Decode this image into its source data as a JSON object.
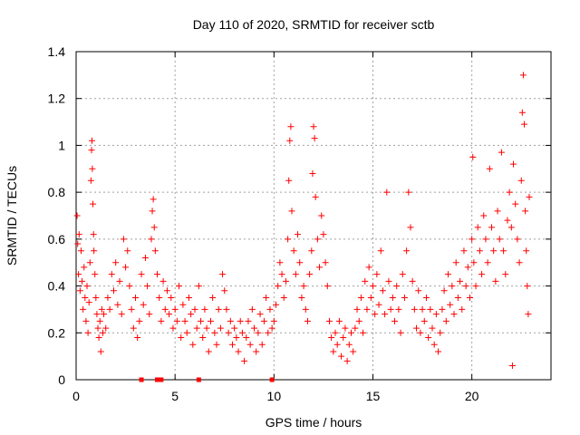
{
  "chart_data": {
    "type": "scatter",
    "title": "Day 110 of 2020, SRMTID for receiver sctb",
    "xlabel": "GPS time / hours",
    "ylabel": "SRMTID / TECUs",
    "xlim": [
      0,
      24
    ],
    "ylim": [
      0,
      1.4
    ],
    "xticks": [
      0,
      5,
      10,
      15,
      20
    ],
    "xtick_labels": [
      "0",
      "5",
      "10",
      "15",
      "20"
    ],
    "yticks": [
      0,
      0.2,
      0.4,
      0.6,
      0.8,
      1.0,
      1.2,
      1.4
    ],
    "ytick_labels": [
      "0",
      "0.2",
      "0.4",
      "0.6",
      "0.8",
      "1",
      "1.2",
      "1.4"
    ],
    "grid": true,
    "marker": "+",
    "color": "#ff0000",
    "series": [
      {
        "name": "sctb",
        "points": [
          [
            0.05,
            0.7
          ],
          [
            0.08,
            0.58
          ],
          [
            0.12,
            0.45
          ],
          [
            0.15,
            0.62
          ],
          [
            0.2,
            0.38
          ],
          [
            0.25,
            0.55
          ],
          [
            0.3,
            0.42
          ],
          [
            0.35,
            0.3
          ],
          [
            0.4,
            0.48
          ],
          [
            0.45,
            0.35
          ],
          [
            0.5,
            0.25
          ],
          [
            0.55,
            0.4
          ],
          [
            0.6,
            0.2
          ],
          [
            0.65,
            0.33
          ],
          [
            0.7,
            0.5
          ],
          [
            0.75,
            0.85
          ],
          [
            0.78,
            0.98
          ],
          [
            0.8,
            1.02
          ],
          [
            0.82,
            0.9
          ],
          [
            0.85,
            0.75
          ],
          [
            0.88,
            0.62
          ],
          [
            0.9,
            0.55
          ],
          [
            0.95,
            0.45
          ],
          [
            1.0,
            0.35
          ],
          [
            1.05,
            0.28
          ],
          [
            1.1,
            0.22
          ],
          [
            1.15,
            0.18
          ],
          [
            1.2,
            0.25
          ],
          [
            1.25,
            0.12
          ],
          [
            1.3,
            0.3
          ],
          [
            1.35,
            0.2
          ],
          [
            1.4,
            0.28
          ],
          [
            1.5,
            0.22
          ],
          [
            1.6,
            0.35
          ],
          [
            1.7,
            0.3
          ],
          [
            1.8,
            0.45
          ],
          [
            1.9,
            0.38
          ],
          [
            2.0,
            0.5
          ],
          [
            2.1,
            0.32
          ],
          [
            2.2,
            0.42
          ],
          [
            2.3,
            0.28
          ],
          [
            2.4,
            0.6
          ],
          [
            2.5,
            0.48
          ],
          [
            2.6,
            0.55
          ],
          [
            2.7,
            0.4
          ],
          [
            2.8,
            0.3
          ],
          [
            2.9,
            0.22
          ],
          [
            3.0,
            0.35
          ],
          [
            3.1,
            0.18
          ],
          [
            3.2,
            0.25
          ],
          [
            3.3,
            0.45
          ],
          [
            3.4,
            0.32
          ],
          [
            3.5,
            0.52
          ],
          [
            3.6,
            0.4
          ],
          [
            3.7,
            0.28
          ],
          [
            3.8,
            0.6
          ],
          [
            3.85,
            0.72
          ],
          [
            3.9,
            0.77
          ],
          [
            3.95,
            0.65
          ],
          [
            4.0,
            0.55
          ],
          [
            4.1,
            0.45
          ],
          [
            4.2,
            0.35
          ],
          [
            4.3,
            0.25
          ],
          [
            4.4,
            0.42
          ],
          [
            4.5,
            0.3
          ],
          [
            4.6,
            0.38
          ],
          [
            4.7,
            0.28
          ],
          [
            4.8,
            0.35
          ],
          [
            4.9,
            0.22
          ],
          [
            5.0,
            0.3
          ],
          [
            5.1,
            0.25
          ],
          [
            5.2,
            0.4
          ],
          [
            5.3,
            0.18
          ],
          [
            5.4,
            0.32
          ],
          [
            5.5,
            0.25
          ],
          [
            5.6,
            0.2
          ],
          [
            5.7,
            0.35
          ],
          [
            5.8,
            0.28
          ],
          [
            5.9,
            0.15
          ],
          [
            6.0,
            0.3
          ],
          [
            6.1,
            0.22
          ],
          [
            6.2,
            0.4
          ],
          [
            6.3,
            0.25
          ],
          [
            6.4,
            0.18
          ],
          [
            6.5,
            0.3
          ],
          [
            6.6,
            0.22
          ],
          [
            6.7,
            0.12
          ],
          [
            6.8,
            0.25
          ],
          [
            6.9,
            0.35
          ],
          [
            7.0,
            0.2
          ],
          [
            7.1,
            0.15
          ],
          [
            7.2,
            0.3
          ],
          [
            7.3,
            0.22
          ],
          [
            7.4,
            0.45
          ],
          [
            7.5,
            0.38
          ],
          [
            7.6,
            0.3
          ],
          [
            7.7,
            0.2
          ],
          [
            7.8,
            0.25
          ],
          [
            7.9,
            0.15
          ],
          [
            8.0,
            0.22
          ],
          [
            8.1,
            0.18
          ],
          [
            8.2,
            0.12
          ],
          [
            8.3,
            0.25
          ],
          [
            8.4,
            0.2
          ],
          [
            8.5,
            0.08
          ],
          [
            8.6,
            0.18
          ],
          [
            8.7,
            0.25
          ],
          [
            8.8,
            0.15
          ],
          [
            8.9,
            0.3
          ],
          [
            9.0,
            0.22
          ],
          [
            9.1,
            0.12
          ],
          [
            9.2,
            0.2
          ],
          [
            9.3,
            0.28
          ],
          [
            9.4,
            0.15
          ],
          [
            9.5,
            0.25
          ],
          [
            9.6,
            0.35
          ],
          [
            9.7,
            0.2
          ],
          [
            9.8,
            0.3
          ],
          [
            9.9,
            0.22
          ],
          [
            10.0,
            0.25
          ],
          [
            10.1,
            0.32
          ],
          [
            10.2,
            0.4
          ],
          [
            10.3,
            0.5
          ],
          [
            10.4,
            0.45
          ],
          [
            10.5,
            0.35
          ],
          [
            10.6,
            0.42
          ],
          [
            10.7,
            0.6
          ],
          [
            10.75,
            0.85
          ],
          [
            10.8,
            1.02
          ],
          [
            10.85,
            1.08
          ],
          [
            10.9,
            0.72
          ],
          [
            11.0,
            0.55
          ],
          [
            11.1,
            0.45
          ],
          [
            11.2,
            0.62
          ],
          [
            11.3,
            0.5
          ],
          [
            11.4,
            0.35
          ],
          [
            11.5,
            0.4
          ],
          [
            11.6,
            0.3
          ],
          [
            11.7,
            0.25
          ],
          [
            11.8,
            0.45
          ],
          [
            11.9,
            0.55
          ],
          [
            11.95,
            0.88
          ],
          [
            12.0,
            1.08
          ],
          [
            12.05,
            1.03
          ],
          [
            12.1,
            0.78
          ],
          [
            12.2,
            0.6
          ],
          [
            12.3,
            0.48
          ],
          [
            12.4,
            0.7
          ],
          [
            12.5,
            0.62
          ],
          [
            12.6,
            0.5
          ],
          [
            12.7,
            0.4
          ],
          [
            12.8,
            0.25
          ],
          [
            12.9,
            0.18
          ],
          [
            13.0,
            0.12
          ],
          [
            13.1,
            0.2
          ],
          [
            13.2,
            0.15
          ],
          [
            13.3,
            0.25
          ],
          [
            13.4,
            0.1
          ],
          [
            13.5,
            0.18
          ],
          [
            13.6,
            0.22
          ],
          [
            13.7,
            0.08
          ],
          [
            13.8,
            0.15
          ],
          [
            13.9,
            0.2
          ],
          [
            14.0,
            0.12
          ],
          [
            14.1,
            0.22
          ],
          [
            14.2,
            0.3
          ],
          [
            14.3,
            0.25
          ],
          [
            14.4,
            0.35
          ],
          [
            14.5,
            0.2
          ],
          [
            14.6,
            0.42
          ],
          [
            14.7,
            0.3
          ],
          [
            14.8,
            0.48
          ],
          [
            14.9,
            0.35
          ],
          [
            15.0,
            0.4
          ],
          [
            15.1,
            0.28
          ],
          [
            15.2,
            0.45
          ],
          [
            15.3,
            0.32
          ],
          [
            15.4,
            0.55
          ],
          [
            15.5,
            0.38
          ],
          [
            15.6,
            0.28
          ],
          [
            15.7,
            0.8
          ],
          [
            15.8,
            0.42
          ],
          [
            15.9,
            0.3
          ],
          [
            16.0,
            0.35
          ],
          [
            16.1,
            0.25
          ],
          [
            16.2,
            0.4
          ],
          [
            16.3,
            0.3
          ],
          [
            16.4,
            0.2
          ],
          [
            16.5,
            0.45
          ],
          [
            16.6,
            0.35
          ],
          [
            16.7,
            0.55
          ],
          [
            16.8,
            0.8
          ],
          [
            16.9,
            0.65
          ],
          [
            17.0,
            0.42
          ],
          [
            17.1,
            0.3
          ],
          [
            17.2,
            0.22
          ],
          [
            17.3,
            0.38
          ],
          [
            17.4,
            0.2
          ],
          [
            17.5,
            0.3
          ],
          [
            17.6,
            0.25
          ],
          [
            17.7,
            0.35
          ],
          [
            17.8,
            0.18
          ],
          [
            17.9,
            0.3
          ],
          [
            18.0,
            0.22
          ],
          [
            18.1,
            0.15
          ],
          [
            18.2,
            0.28
          ],
          [
            18.3,
            0.12
          ],
          [
            18.4,
            0.2
          ],
          [
            18.5,
            0.3
          ],
          [
            18.6,
            0.38
          ],
          [
            18.7,
            0.25
          ],
          [
            18.8,
            0.45
          ],
          [
            18.9,
            0.32
          ],
          [
            19.0,
            0.4
          ],
          [
            19.1,
            0.28
          ],
          [
            19.2,
            0.5
          ],
          [
            19.3,
            0.35
          ],
          [
            19.4,
            0.42
          ],
          [
            19.5,
            0.3
          ],
          [
            19.6,
            0.55
          ],
          [
            19.7,
            0.4
          ],
          [
            19.8,
            0.48
          ],
          [
            19.9,
            0.35
          ],
          [
            20.0,
            0.6
          ],
          [
            20.05,
            0.95
          ],
          [
            20.1,
            0.5
          ],
          [
            20.2,
            0.4
          ],
          [
            20.3,
            0.65
          ],
          [
            20.4,
            0.55
          ],
          [
            20.5,
            0.45
          ],
          [
            20.6,
            0.7
          ],
          [
            20.7,
            0.6
          ],
          [
            20.8,
            0.5
          ],
          [
            20.9,
            0.9
          ],
          [
            21.0,
            0.65
          ],
          [
            21.1,
            0.55
          ],
          [
            21.2,
            0.42
          ],
          [
            21.3,
            0.72
          ],
          [
            21.4,
            0.6
          ],
          [
            21.5,
            0.97
          ],
          [
            21.6,
            0.55
          ],
          [
            21.7,
            0.45
          ],
          [
            21.8,
            0.68
          ],
          [
            21.9,
            0.8
          ],
          [
            22.0,
            0.65
          ],
          [
            22.05,
            0.06
          ],
          [
            22.1,
            0.92
          ],
          [
            22.2,
            0.75
          ],
          [
            22.3,
            0.6
          ],
          [
            22.4,
            0.5
          ],
          [
            22.5,
            0.85
          ],
          [
            22.55,
            1.14
          ],
          [
            22.6,
            1.3
          ],
          [
            22.65,
            1.09
          ],
          [
            22.7,
            0.72
          ],
          [
            22.75,
            0.55
          ],
          [
            22.8,
            0.4
          ],
          [
            22.85,
            0.28
          ],
          [
            22.9,
            0.78
          ]
        ]
      }
    ],
    "baseline_markers_x": [
      3.3,
      4.1,
      4.3,
      6.2,
      9.9
    ]
  }
}
